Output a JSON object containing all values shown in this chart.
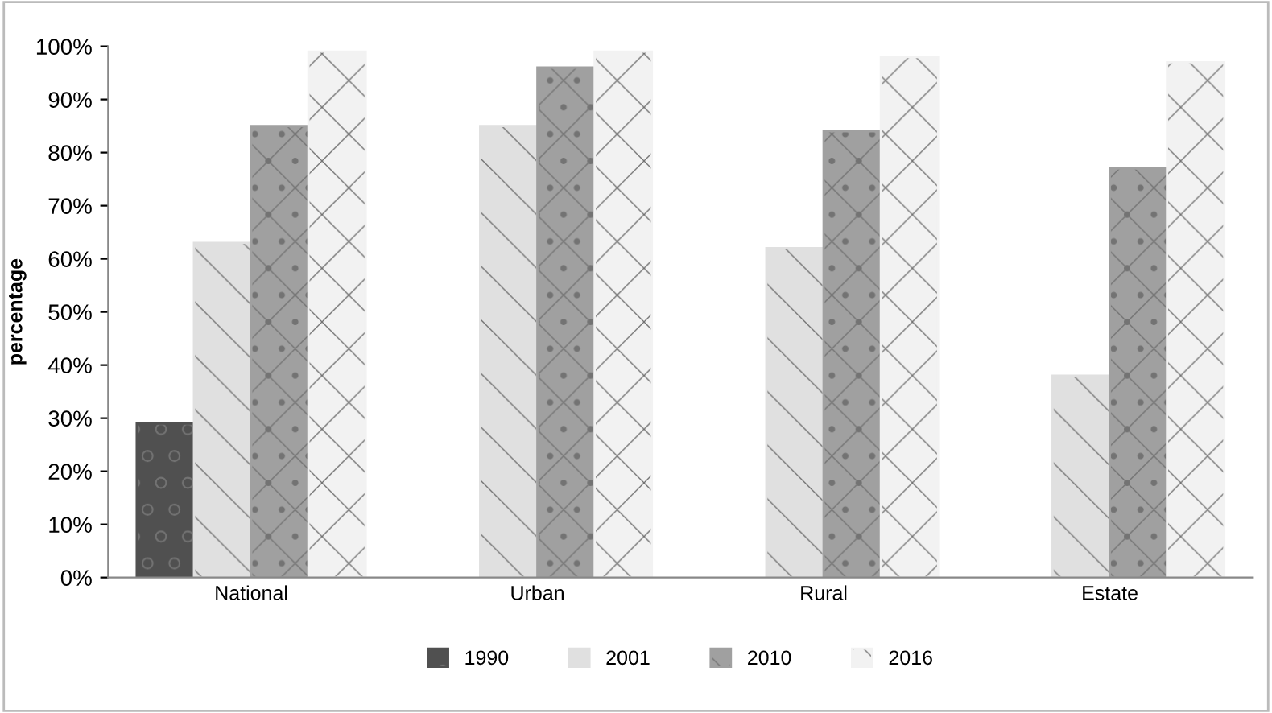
{
  "chart_data": {
    "type": "bar",
    "ylabel": "percentage",
    "categories": [
      "National",
      "Urban",
      "Rural",
      "Estate"
    ],
    "series": [
      {
        "name": "1990",
        "color": "#505050",
        "values": [
          29,
          null,
          null,
          null
        ]
      },
      {
        "name": "2001",
        "color": "#e0e0e0",
        "values": [
          63,
          85,
          62,
          38
        ]
      },
      {
        "name": "2010",
        "color": "#a0a0a0",
        "values": [
          85,
          96,
          84,
          77
        ]
      },
      {
        "name": "2016",
        "color": "#f2f2f2",
        "values": [
          99,
          99,
          98,
          97
        ]
      }
    ],
    "ylim": [
      0,
      100
    ],
    "yticks": [
      {
        "value": 0,
        "label": "0%"
      },
      {
        "value": 10,
        "label": "10%"
      },
      {
        "value": 20,
        "label": "20%"
      },
      {
        "value": 30,
        "label": "30%"
      },
      {
        "value": 40,
        "label": "40%"
      },
      {
        "value": 50,
        "label": "50%"
      },
      {
        "value": 60,
        "label": "60%"
      },
      {
        "value": 70,
        "label": "70%"
      },
      {
        "value": 80,
        "label": "80%"
      },
      {
        "value": 90,
        "label": "90%"
      },
      {
        "value": 100,
        "label": "100%"
      }
    ],
    "grid": false,
    "legend": "bottom"
  }
}
